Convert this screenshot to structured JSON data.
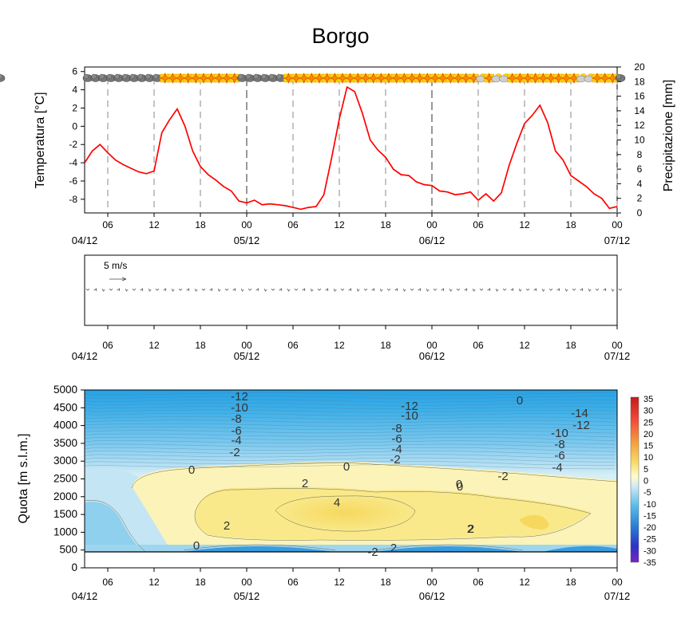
{
  "title": "Borgo",
  "time_axis": {
    "hour_ticks": [
      "06",
      "12",
      "18",
      "00",
      "06",
      "12",
      "18",
      "00",
      "06",
      "12",
      "18",
      "00"
    ],
    "date_ticks": [
      "04/12",
      "05/12",
      "06/12",
      "07/12"
    ],
    "start": "2023-12-04 03:00",
    "end": "2023-12-07 00:00"
  },
  "chart_data": [
    {
      "type": "line",
      "title": "Borgo",
      "ylabel": "Temperatura [°C]",
      "y2label": "Precipitazione [mm]",
      "ylim": [
        -9.5,
        6.5
      ],
      "y2lim": [
        0,
        20
      ],
      "yticks": [
        6,
        4,
        2,
        0,
        -2,
        -4,
        -6,
        -8
      ],
      "y2ticks": [
        0,
        2,
        4,
        6,
        8,
        10,
        12,
        14,
        16,
        18,
        20
      ],
      "x_hours": [
        0,
        1,
        2,
        3,
        4,
        5,
        6,
        7,
        8,
        9,
        10,
        11,
        12,
        13,
        14,
        15,
        16,
        17,
        18,
        19,
        20,
        21,
        22,
        23,
        24,
        25,
        26,
        27,
        28,
        29,
        30,
        31,
        32,
        33,
        34,
        35,
        36,
        37,
        38,
        39,
        40,
        41,
        42,
        43,
        44,
        45,
        46,
        47,
        48,
        49,
        50,
        51,
        52,
        53,
        54,
        55,
        56,
        57,
        58,
        59,
        60,
        61,
        62,
        63,
        64,
        65,
        66,
        67,
        68,
        69
      ],
      "series": [
        {
          "color": "#ff0000",
          "values": [
            -4.0,
            -2.7,
            -2.0,
            -2.9,
            -3.7,
            -4.2,
            -4.6,
            -5.0,
            -5.2,
            -4.9,
            -0.7,
            0.7,
            1.9,
            0.0,
            -2.7,
            -4.4,
            -5.3,
            -5.9,
            -6.6,
            -7.1,
            -8.2,
            -8.4,
            -8.1,
            -8.6,
            -8.5,
            -8.6,
            -8.7,
            -8.9,
            -9.1,
            -8.9,
            -8.8,
            -7.5,
            -3.5,
            0.8,
            4.3,
            3.8,
            1.4,
            -1.5,
            -2.6,
            -3.4,
            -4.7,
            -5.3,
            -5.4,
            -6.1,
            -6.4,
            -6.5,
            -7.1,
            -7.2,
            -7.5,
            -7.4,
            -7.2,
            -8.1,
            -7.4,
            -8.2,
            -7.3,
            -4.3,
            -1.9,
            0.3,
            1.2,
            2.3,
            0.4,
            -2.7,
            -3.7,
            -5.4,
            -6.0,
            -6.6,
            -7.4,
            -7.9,
            -9.0,
            -8.8
          ]
        }
      ],
      "weather_symbols": [
        "cloud",
        "cloud",
        "cloud",
        "cloud",
        "cloud",
        "cloud",
        "cloud",
        "cloud",
        "cloud",
        "cloud",
        "snow",
        "snow",
        "snow",
        "snow",
        "snow",
        "snow",
        "snow",
        "snow",
        "snow",
        "snow",
        "cloud",
        "cloud",
        "cloud",
        "cloud",
        "cloud",
        "cloud",
        "snow",
        "snow",
        "snow",
        "snow",
        "snow",
        "snow",
        "snow",
        "snow",
        "snow",
        "snow",
        "snow",
        "snow",
        "snow",
        "snow",
        "snow",
        "snow",
        "snow",
        "snow",
        "snow",
        "snow",
        "snow",
        "snow",
        "snow",
        "snow",
        "snow",
        "sun-cloud",
        "snow",
        "sun-cloud",
        "sun-cloud",
        "snow",
        "snow",
        "snow",
        "snow",
        "snow",
        "snow",
        "snow",
        "snow",
        "snow",
        "sun-cloud",
        "sun-cloud",
        "snow",
        "snow",
        "snow",
        "cloud",
        "cloud"
      ],
      "grid": "dashed vertical every 6h"
    },
    {
      "type": "vector",
      "reference_label": "5 m/s",
      "description_values": "near-calm wind barbs every hour"
    },
    {
      "type": "contour",
      "ylabel": "Quota [m s.l.m.]",
      "ylim": [
        0,
        5000
      ],
      "yticks": [
        0,
        500,
        1000,
        1500,
        2000,
        2500,
        3000,
        3500,
        4000,
        4500,
        5000
      ],
      "colorbar": [
        "35",
        "30",
        "25",
        "20",
        "15",
        "10",
        "5",
        "0",
        "-5",
        "-10",
        "-15",
        "-20",
        "-25",
        "-30",
        "-35"
      ],
      "contour_labels": [
        "-12",
        "-10",
        "-8",
        "-6",
        "-4",
        "-2",
        "0",
        "2",
        "4",
        "0",
        "2",
        "0",
        "-2",
        "-12",
        "-10",
        "-8",
        "-6",
        "-4",
        "-2",
        "0",
        "2",
        "2",
        "0",
        "-14",
        "-12",
        "-10",
        "-8",
        "-6",
        "-4",
        "-2",
        "0",
        "2"
      ]
    }
  ]
}
